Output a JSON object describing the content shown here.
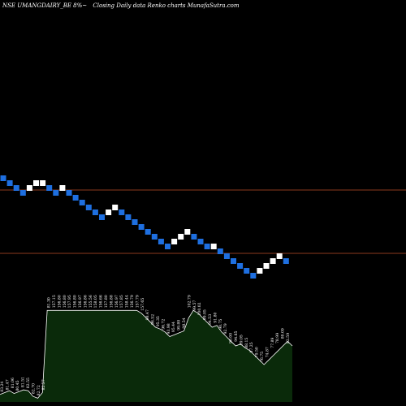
{
  "header": {
    "symbol": "NSE UMANGDAIRY_BE 8%~",
    "desc": "Closing Daily data  Renko  charts MunafaSutra.com"
  },
  "colors": {
    "background": "#000000",
    "up_brick": "#ffffff",
    "down_brick": "#1e6fe0",
    "line": "#8b3a1e",
    "volume_fill": "#0a2a0a",
    "volume_line": "#ffffff"
  },
  "chart_data": {
    "type": "renko",
    "title": "",
    "levels": [
      {
        "name": "upper",
        "brick_level": 0
      },
      {
        "name": "lower",
        "brick_level": -13
      }
    ],
    "bricks": [
      {
        "level": 2,
        "dir": "down"
      },
      {
        "level": 1,
        "dir": "down"
      },
      {
        "level": 0,
        "dir": "down"
      },
      {
        "level": -1,
        "dir": "down"
      },
      {
        "level": 0,
        "dir": "up"
      },
      {
        "level": 1,
        "dir": "up"
      },
      {
        "level": 1,
        "dir": "up"
      },
      {
        "level": 0,
        "dir": "down"
      },
      {
        "level": -1,
        "dir": "down"
      },
      {
        "level": 0,
        "dir": "up"
      },
      {
        "level": -1,
        "dir": "down"
      },
      {
        "level": -2,
        "dir": "down"
      },
      {
        "level": -3,
        "dir": "down"
      },
      {
        "level": -4,
        "dir": "down"
      },
      {
        "level": -5,
        "dir": "down"
      },
      {
        "level": -6,
        "dir": "down"
      },
      {
        "level": -5,
        "dir": "up"
      },
      {
        "level": -4,
        "dir": "up"
      },
      {
        "level": -5,
        "dir": "down"
      },
      {
        "level": -6,
        "dir": "down"
      },
      {
        "level": -7,
        "dir": "down"
      },
      {
        "level": -8,
        "dir": "down"
      },
      {
        "level": -9,
        "dir": "down"
      },
      {
        "level": -10,
        "dir": "down"
      },
      {
        "level": -11,
        "dir": "down"
      },
      {
        "level": -12,
        "dir": "down"
      },
      {
        "level": -11,
        "dir": "up"
      },
      {
        "level": -10,
        "dir": "up"
      },
      {
        "level": -9,
        "dir": "up"
      },
      {
        "level": -10,
        "dir": "down"
      },
      {
        "level": -11,
        "dir": "down"
      },
      {
        "level": -12,
        "dir": "down"
      },
      {
        "level": -12,
        "dir": "up"
      },
      {
        "level": -13,
        "dir": "down"
      },
      {
        "level": -14,
        "dir": "down"
      },
      {
        "level": -15,
        "dir": "down"
      },
      {
        "level": -16,
        "dir": "down"
      },
      {
        "level": -17,
        "dir": "down"
      },
      {
        "level": -18,
        "dir": "down"
      },
      {
        "level": -17,
        "dir": "up"
      },
      {
        "level": -16,
        "dir": "up"
      },
      {
        "level": -15,
        "dir": "up"
      },
      {
        "level": -14,
        "dir": "up"
      },
      {
        "level": -15,
        "dir": "down"
      }
    ],
    "price_labels": [
      "83.24",
      "81.47",
      "81.06",
      "80.45",
      "81.51",
      "82.55",
      "82.70",
      "82.72",
      "82.57",
      "81.30",
      "157.15",
      "156.80",
      "156.80",
      "157.95",
      "156.80",
      "156.97",
      "156.86",
      "155.56",
      "158.05",
      "156.66",
      "157.80",
      "156.88",
      "156.97",
      "157.85",
      "158.44",
      "156.79",
      "157.79",
      "157.65",
      "98.47",
      "96.52",
      "95.35",
      "96.72",
      "93.98",
      "95.44",
      "99.80",
      "98.54",
      "102.79",
      "99.57",
      "100.02",
      "99.05",
      "94.53",
      "91.80",
      "90.75",
      "92.79",
      "90.00",
      "94.85",
      "89.05",
      "88.15",
      "87.25",
      "79.50",
      "76.75",
      "74.87",
      "77.89",
      "78.99",
      "80.09",
      "82.59"
    ],
    "volume_profile": [
      0.08,
      0.1,
      0.12,
      0.09,
      0.11,
      0.13,
      0.12,
      0.06,
      0.04,
      0.1,
      0.98,
      0.98,
      0.98,
      0.98,
      0.98,
      0.98,
      0.98,
      0.98,
      0.98,
      0.98,
      0.98,
      0.98,
      0.98,
      0.98,
      0.98,
      0.98,
      0.98,
      0.98,
      0.98,
      0.98,
      0.95,
      0.9,
      0.85,
      0.8,
      0.78,
      0.75,
      0.7,
      0.72,
      0.74,
      0.76,
      0.9,
      0.98,
      0.95,
      0.9,
      0.85,
      0.8,
      0.82,
      0.75,
      0.7,
      0.65,
      0.6,
      0.62,
      0.58,
      0.55,
      0.5,
      0.45,
      0.4,
      0.45,
      0.5,
      0.55,
      0.6,
      0.65,
      0.6
    ]
  }
}
